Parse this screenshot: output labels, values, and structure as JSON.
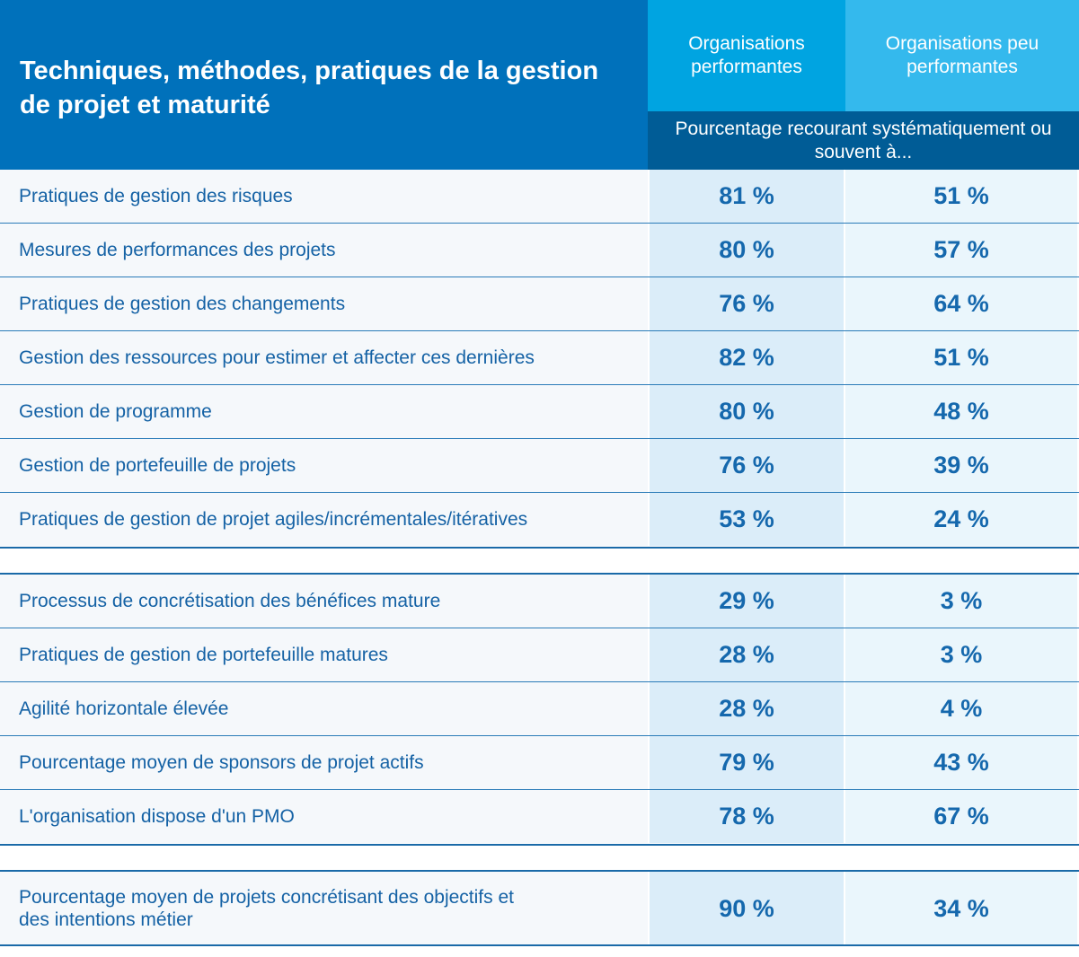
{
  "header": {
    "title": "Techniques, méthodes, pratiques de la gestion de projet et maturité",
    "columns": [
      "Organisations performantes",
      "Organisations peu performantes"
    ],
    "subheader": "Pourcentage recourant systématiquement ou souvent à..."
  },
  "table": {
    "groups": [
      {
        "rows": [
          [
            "Pratiques de gestion des risques",
            "81 %",
            "51 %"
          ],
          [
            "Mesures de performances des projets",
            "80 %",
            "57 %"
          ],
          [
            "Pratiques de gestion des changements",
            "76 %",
            "64 %"
          ],
          [
            "Gestion des ressources pour estimer et affecter ces dernières",
            "82 %",
            "51 %"
          ],
          [
            "Gestion de programme",
            "80 %",
            "48 %"
          ],
          [
            "Gestion de portefeuille de projets",
            "76 %",
            "39 %"
          ],
          [
            "Pratiques de gestion de projet agiles/incrémentales/itératives",
            "53 %",
            "24 %"
          ]
        ]
      },
      {
        "rows": [
          [
            "Processus de concrétisation des bénéfices mature",
            "29 %",
            "3 %"
          ],
          [
            "Pratiques de gestion de portefeuille matures",
            "28 %",
            "3 %"
          ],
          [
            "Agilité horizontale élevée",
            "28 %",
            "4 %"
          ],
          [
            "Pourcentage moyen de sponsors de projet actifs",
            "79 %",
            "43 %"
          ],
          [
            "L'organisation dispose d'un PMO",
            "78 %",
            "67 %"
          ]
        ]
      },
      {
        "rows": [
          [
            "Pourcentage moyen de projets concrétisant des objectifs et des intentions métier",
            "90 %",
            "34 %"
          ]
        ]
      }
    ]
  }
}
